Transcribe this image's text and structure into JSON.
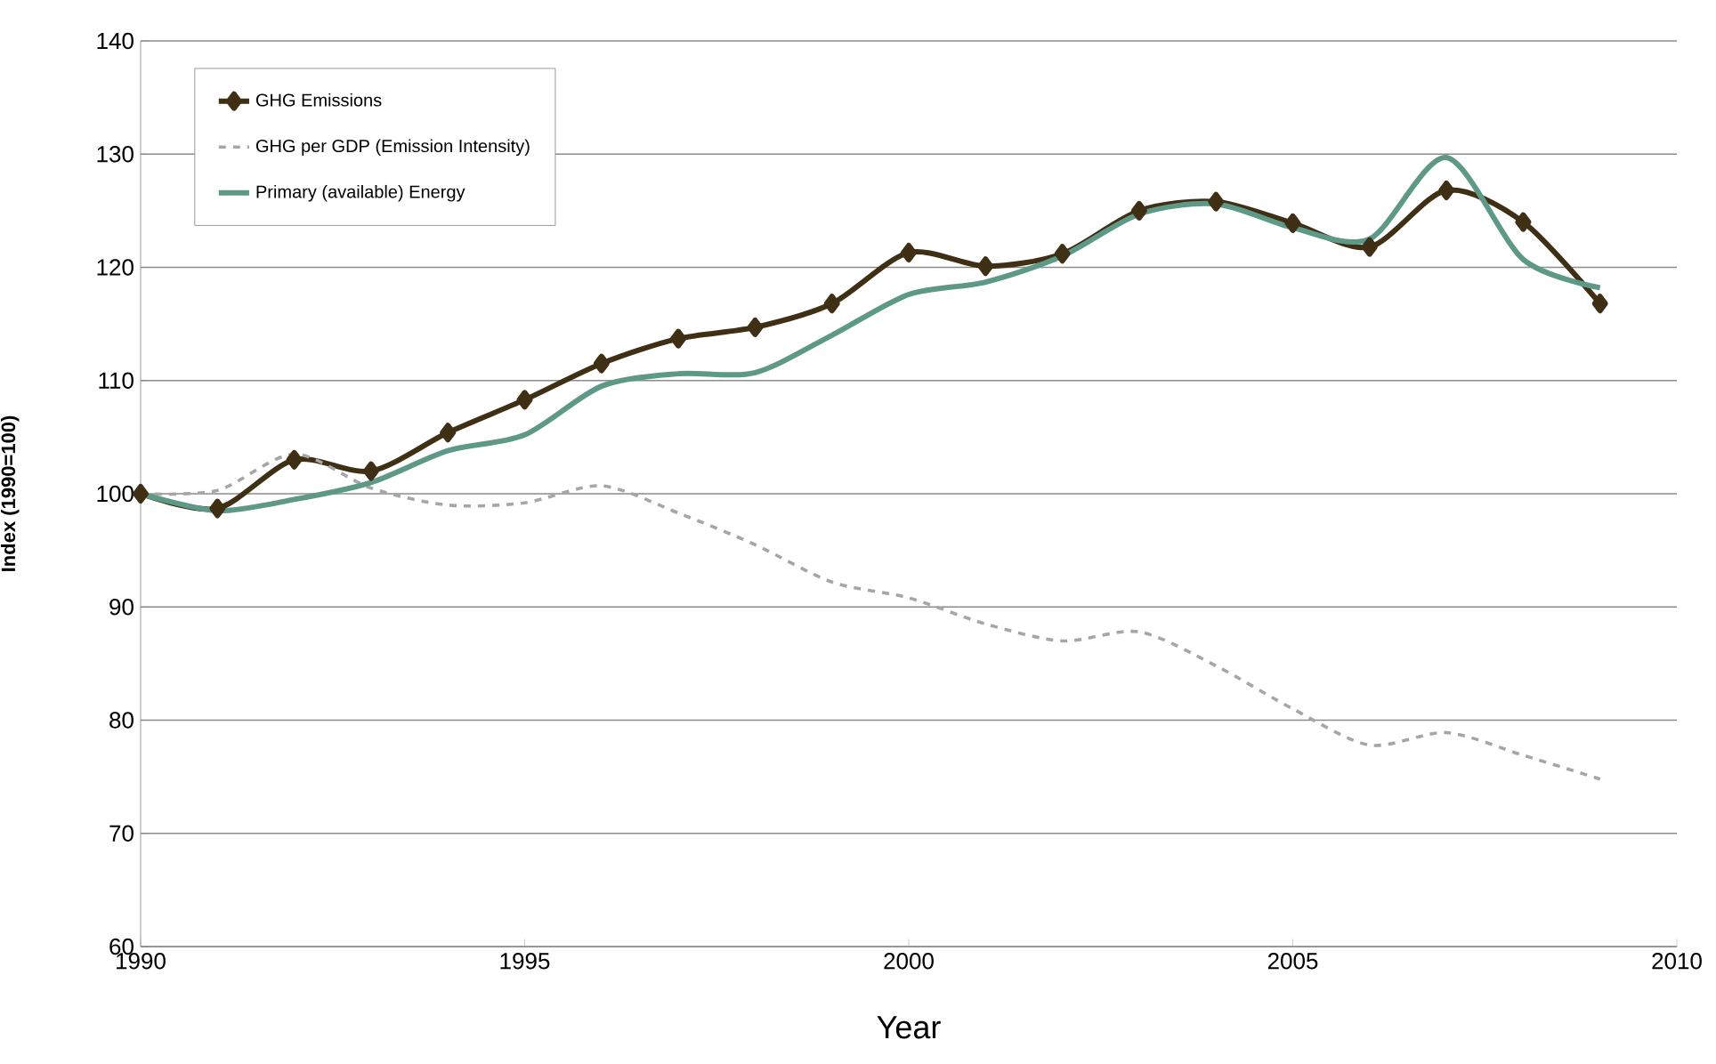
{
  "chart_data": {
    "type": "line",
    "xlabel": "Year",
    "ylabel": "Index (1990=100)",
    "x": [
      1990,
      1991,
      1992,
      1993,
      1994,
      1995,
      1996,
      1997,
      1998,
      1999,
      2000,
      2001,
      2002,
      2003,
      2004,
      2005,
      2006,
      2007,
      2008,
      2009
    ],
    "series": [
      {
        "name": "GHG Emissions",
        "color": "#3f2f14",
        "marker": "diamond",
        "line_style": "solid",
        "values": [
          100,
          98.7,
          103,
          102,
          105.4,
          108.3,
          111.5,
          113.7,
          114.7,
          116.8,
          121.3,
          120.1,
          121.2,
          125,
          125.8,
          123.9,
          121.8,
          126.8,
          124,
          116.8
        ]
      },
      {
        "name": "GHG per GDP (Emission Intensity)",
        "color": "#a6a6a6",
        "marker": "none",
        "line_style": "dashed",
        "values": [
          100,
          100.3,
          103.5,
          100.5,
          99,
          99.2,
          100.7,
          98.3,
          95.5,
          92.2,
          90.8,
          88.5,
          87,
          87.8,
          84.8,
          81,
          77.8,
          78.9,
          76.9,
          74.8
        ]
      },
      {
        "name": "Primary (available) Energy",
        "color": "#5e9988",
        "marker": "none",
        "line_style": "solid",
        "values": [
          100,
          98.5,
          99.5,
          101,
          103.8,
          105.2,
          109.5,
          110.6,
          110.7,
          114,
          117.6,
          118.7,
          121,
          124.7,
          125.6,
          123.5,
          122.5,
          129.7,
          120.7,
          118.2
        ]
      }
    ],
    "xlim": [
      1990,
      2010
    ],
    "xticks": [
      1990,
      1995,
      2000,
      2005,
      2010
    ],
    "ylim": [
      60,
      140
    ],
    "yticks": [
      60,
      70,
      80,
      90,
      100,
      110,
      120,
      130,
      140
    ],
    "grid": "y",
    "legend": "top left"
  }
}
